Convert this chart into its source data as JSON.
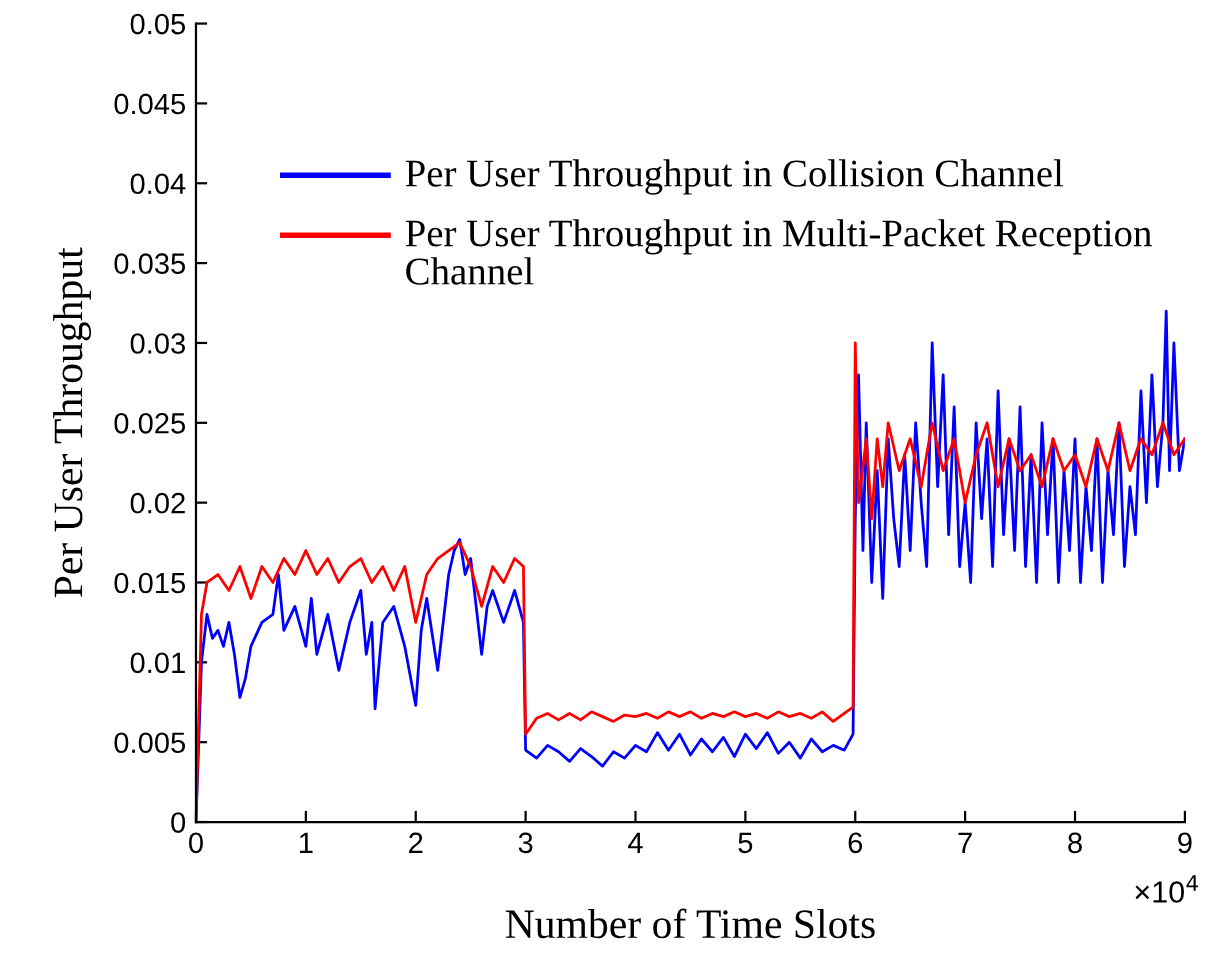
{
  "chart_data": {
    "type": "line",
    "xlabel": "Number of Time Slots",
    "ylabel": "Per User Throughput",
    "annotations": [
      "×10$^{4}$"
    ],
    "xlim": [
      0,
      9
    ],
    "ylim": [
      0,
      0.05
    ],
    "xticks": [
      0,
      1,
      2,
      3,
      4,
      5,
      6,
      7,
      8,
      9
    ],
    "yticks": [
      0,
      0.005,
      0.01,
      0.015,
      0.02,
      0.025,
      0.03,
      0.035,
      0.04,
      0.045,
      0.05
    ],
    "legend": "top",
    "line_style": "solid",
    "series": [
      {
        "name": "Per User Throughput in Collision Channel",
        "color": "#0000ff",
        "x": [
          0,
          0.05,
          0.1,
          0.15,
          0.2,
          0.25,
          0.3,
          0.35,
          0.4,
          0.45,
          0.5,
          0.6,
          0.7,
          0.75,
          0.8,
          0.9,
          1.0,
          1.05,
          1.1,
          1.2,
          1.3,
          1.4,
          1.5,
          1.55,
          1.6,
          1.63,
          1.7,
          1.8,
          1.9,
          2.0,
          2.05,
          2.1,
          2.2,
          2.3,
          2.35,
          2.4,
          2.45,
          2.5,
          2.55,
          2.6,
          2.65,
          2.7,
          2.8,
          2.9,
          2.98,
          3.0,
          3.1,
          3.2,
          3.3,
          3.4,
          3.5,
          3.6,
          3.7,
          3.8,
          3.9,
          4.0,
          4.1,
          4.2,
          4.3,
          4.4,
          4.5,
          4.6,
          4.7,
          4.8,
          4.9,
          5.0,
          5.1,
          5.2,
          5.3,
          5.4,
          5.5,
          5.6,
          5.7,
          5.8,
          5.9,
          5.98,
          6.0,
          6.03,
          6.07,
          6.1,
          6.15,
          6.2,
          6.25,
          6.3,
          6.35,
          6.4,
          6.45,
          6.5,
          6.55,
          6.6,
          6.65,
          6.7,
          6.75,
          6.8,
          6.85,
          6.9,
          6.95,
          7.0,
          7.05,
          7.1,
          7.15,
          7.2,
          7.25,
          7.3,
          7.35,
          7.4,
          7.45,
          7.5,
          7.55,
          7.6,
          7.65,
          7.7,
          7.75,
          7.8,
          7.85,
          7.9,
          7.95,
          8.0,
          8.05,
          8.1,
          8.15,
          8.2,
          8.25,
          8.3,
          8.35,
          8.4,
          8.45,
          8.5,
          8.55,
          8.6,
          8.65,
          8.7,
          8.75,
          8.8,
          8.83,
          8.86,
          8.9,
          8.95,
          9.0
        ],
        "values": [
          0,
          0.01,
          0.013,
          0.0115,
          0.012,
          0.011,
          0.0125,
          0.0105,
          0.0078,
          0.009,
          0.011,
          0.0125,
          0.013,
          0.0155,
          0.012,
          0.0135,
          0.011,
          0.014,
          0.0105,
          0.013,
          0.0095,
          0.0125,
          0.0145,
          0.0105,
          0.0125,
          0.0071,
          0.0125,
          0.0135,
          0.011,
          0.0073,
          0.012,
          0.014,
          0.0095,
          0.0155,
          0.017,
          0.0177,
          0.0155,
          0.0165,
          0.0135,
          0.0105,
          0.0135,
          0.0145,
          0.0125,
          0.0145,
          0.0125,
          0.0045,
          0.004,
          0.0048,
          0.0044,
          0.0038,
          0.0046,
          0.0041,
          0.0035,
          0.0044,
          0.004,
          0.0048,
          0.0044,
          0.0056,
          0.0045,
          0.0055,
          0.0042,
          0.0052,
          0.0044,
          0.0053,
          0.0041,
          0.0055,
          0.0046,
          0.0056,
          0.0043,
          0.005,
          0.004,
          0.0052,
          0.0044,
          0.0048,
          0.0045,
          0.0055,
          0.019,
          0.028,
          0.017,
          0.025,
          0.015,
          0.022,
          0.014,
          0.024,
          0.019,
          0.016,
          0.023,
          0.017,
          0.025,
          0.02,
          0.016,
          0.03,
          0.021,
          0.028,
          0.018,
          0.026,
          0.016,
          0.02,
          0.015,
          0.025,
          0.019,
          0.024,
          0.016,
          0.027,
          0.018,
          0.024,
          0.017,
          0.026,
          0.016,
          0.023,
          0.015,
          0.025,
          0.018,
          0.024,
          0.015,
          0.022,
          0.017,
          0.024,
          0.015,
          0.021,
          0.017,
          0.024,
          0.015,
          0.022,
          0.018,
          0.025,
          0.016,
          0.021,
          0.018,
          0.027,
          0.02,
          0.028,
          0.021,
          0.025,
          0.032,
          0.022,
          0.03,
          0.022,
          0.024
        ]
      },
      {
        "name": "Per User Throughput in Multi-Packet Reception Channel",
        "color": "#ff0000",
        "x": [
          0,
          0.05,
          0.1,
          0.2,
          0.3,
          0.4,
          0.5,
          0.6,
          0.7,
          0.8,
          0.9,
          1.0,
          1.1,
          1.2,
          1.3,
          1.4,
          1.5,
          1.6,
          1.7,
          1.8,
          1.9,
          2.0,
          2.1,
          2.2,
          2.3,
          2.4,
          2.5,
          2.6,
          2.7,
          2.8,
          2.9,
          2.98,
          3.0,
          3.1,
          3.2,
          3.3,
          3.4,
          3.5,
          3.6,
          3.7,
          3.8,
          3.9,
          4.0,
          4.1,
          4.2,
          4.3,
          4.4,
          4.5,
          4.6,
          4.7,
          4.8,
          4.9,
          5.0,
          5.1,
          5.2,
          5.3,
          5.4,
          5.5,
          5.6,
          5.7,
          5.8,
          5.9,
          5.98,
          6.0,
          6.03,
          6.1,
          6.15,
          6.2,
          6.25,
          6.3,
          6.4,
          6.5,
          6.6,
          6.7,
          6.8,
          6.9,
          7.0,
          7.1,
          7.2,
          7.3,
          7.4,
          7.5,
          7.6,
          7.7,
          7.8,
          7.9,
          8.0,
          8.1,
          8.2,
          8.3,
          8.4,
          8.5,
          8.6,
          8.7,
          8.8,
          8.9,
          9.0
        ],
        "values": [
          0,
          0.013,
          0.015,
          0.0155,
          0.0145,
          0.016,
          0.014,
          0.016,
          0.015,
          0.0165,
          0.0155,
          0.017,
          0.0155,
          0.0165,
          0.015,
          0.016,
          0.0165,
          0.015,
          0.016,
          0.0145,
          0.016,
          0.0125,
          0.0155,
          0.0165,
          0.017,
          0.0175,
          0.016,
          0.0135,
          0.016,
          0.015,
          0.0165,
          0.016,
          0.0055,
          0.0065,
          0.0068,
          0.0064,
          0.0068,
          0.0064,
          0.0069,
          0.0066,
          0.0063,
          0.0067,
          0.0066,
          0.0068,
          0.0065,
          0.0069,
          0.0066,
          0.0069,
          0.0065,
          0.0068,
          0.0066,
          0.0069,
          0.0066,
          0.0068,
          0.0065,
          0.0069,
          0.0066,
          0.0068,
          0.0065,
          0.0069,
          0.0063,
          0.0068,
          0.0072,
          0.03,
          0.02,
          0.024,
          0.019,
          0.024,
          0.021,
          0.025,
          0.022,
          0.024,
          0.021,
          0.025,
          0.022,
          0.024,
          0.02,
          0.023,
          0.025,
          0.021,
          0.024,
          0.022,
          0.023,
          0.021,
          0.024,
          0.022,
          0.023,
          0.021,
          0.024,
          0.022,
          0.025,
          0.022,
          0.024,
          0.023,
          0.025,
          0.023,
          0.024
        ]
      }
    ]
  }
}
